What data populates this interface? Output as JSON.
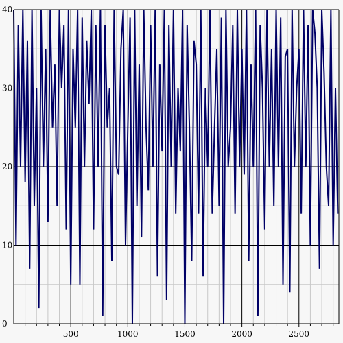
{
  "chart_data": {
    "type": "line",
    "title": "",
    "xlabel": "",
    "ylabel": "",
    "xlim": [
      0,
      2850
    ],
    "ylim": [
      0,
      40
    ],
    "xticks": [
      500,
      1000,
      1500,
      2000,
      2500
    ],
    "xtick_labels": [
      "500",
      "1000",
      "1500",
      "2000",
      "2500"
    ],
    "yticks": [
      0,
      10,
      20,
      30,
      40
    ],
    "ytick_labels": [
      "0",
      "10",
      "20",
      "30",
      "40"
    ],
    "minor_xticks": [
      100,
      200,
      300,
      400,
      600,
      700,
      800,
      900,
      1100,
      1200,
      1300,
      1400,
      1600,
      1700,
      1800,
      1900,
      2100,
      2200,
      2300,
      2400,
      2600,
      2700,
      2800
    ],
    "minor_yticks": [
      5,
      15,
      25,
      35
    ],
    "grid": true,
    "colors": {
      "line": "#000066",
      "major_grid": "#000000",
      "minor_grid": "#c8c8c8",
      "background": "#f7f7f7"
    },
    "series": [
      {
        "x": [
          0,
          20,
          40,
          60,
          80,
          100,
          120,
          140,
          160,
          180,
          200,
          220,
          240,
          260,
          280,
          300,
          320,
          340,
          360,
          380,
          400,
          420,
          440,
          460,
          480,
          500,
          520,
          540,
          560,
          580,
          600,
          620,
          640,
          660,
          680,
          700,
          720,
          740,
          760,
          780,
          800,
          820,
          840,
          860,
          880,
          900,
          920,
          940,
          960,
          980,
          1000,
          1020,
          1040,
          1060,
          1080,
          1100,
          1120,
          1140,
          1160,
          1180,
          1200,
          1220,
          1240,
          1260,
          1280,
          1300,
          1320,
          1340,
          1360,
          1380,
          1400,
          1420,
          1440,
          1460,
          1480,
          1500,
          1520,
          1540,
          1560,
          1580,
          1600,
          1620,
          1640,
          1660,
          1680,
          1700,
          1720,
          1740,
          1760,
          1780,
          1800,
          1820,
          1840,
          1860,
          1880,
          1900,
          1920,
          1940,
          1960,
          1980,
          2000,
          2020,
          2040,
          2060,
          2080,
          2100,
          2120,
          2140,
          2160,
          2180,
          2200,
          2220,
          2240,
          2260,
          2280,
          2300,
          2320,
          2340,
          2360,
          2380,
          2400,
          2420,
          2440,
          2460,
          2480,
          2500,
          2520,
          2540,
          2560,
          2580,
          2600,
          2620,
          2640,
          2660,
          2680,
          2700,
          2720,
          2740,
          2760,
          2780,
          2800,
          2820,
          2840
        ],
        "y": [
          40,
          10,
          38,
          20,
          40,
          18,
          36,
          7,
          40,
          15,
          30,
          2,
          40,
          20,
          35,
          13,
          40,
          25,
          33,
          15,
          40,
          30,
          38,
          12,
          40,
          5,
          35,
          25,
          40,
          5,
          39,
          20,
          36,
          28,
          40,
          12,
          38,
          20,
          40,
          1,
          38,
          25,
          30,
          8,
          40,
          20,
          19,
          35,
          40,
          10,
          25,
          39,
          0,
          40,
          15,
          33,
          11,
          40,
          25,
          17,
          38,
          20,
          40,
          6,
          33,
          22,
          40,
          3,
          38,
          20,
          40,
          14,
          30,
          22,
          40,
          0,
          38,
          25,
          8,
          36,
          33,
          14,
          40,
          6,
          30,
          20,
          40,
          14,
          25,
          35,
          15,
          39,
          0,
          40,
          20,
          25,
          38,
          14,
          40,
          20,
          35,
          19,
          40,
          8,
          33,
          20,
          40,
          1,
          38,
          30,
          12,
          40,
          20,
          35,
          15,
          40,
          20,
          39,
          5,
          34,
          35,
          4,
          40,
          20,
          30,
          35,
          14,
          40,
          20,
          38,
          10,
          40,
          37,
          30,
          7,
          40,
          32,
          20,
          15,
          40,
          10,
          30,
          14
        ]
      }
    ]
  }
}
